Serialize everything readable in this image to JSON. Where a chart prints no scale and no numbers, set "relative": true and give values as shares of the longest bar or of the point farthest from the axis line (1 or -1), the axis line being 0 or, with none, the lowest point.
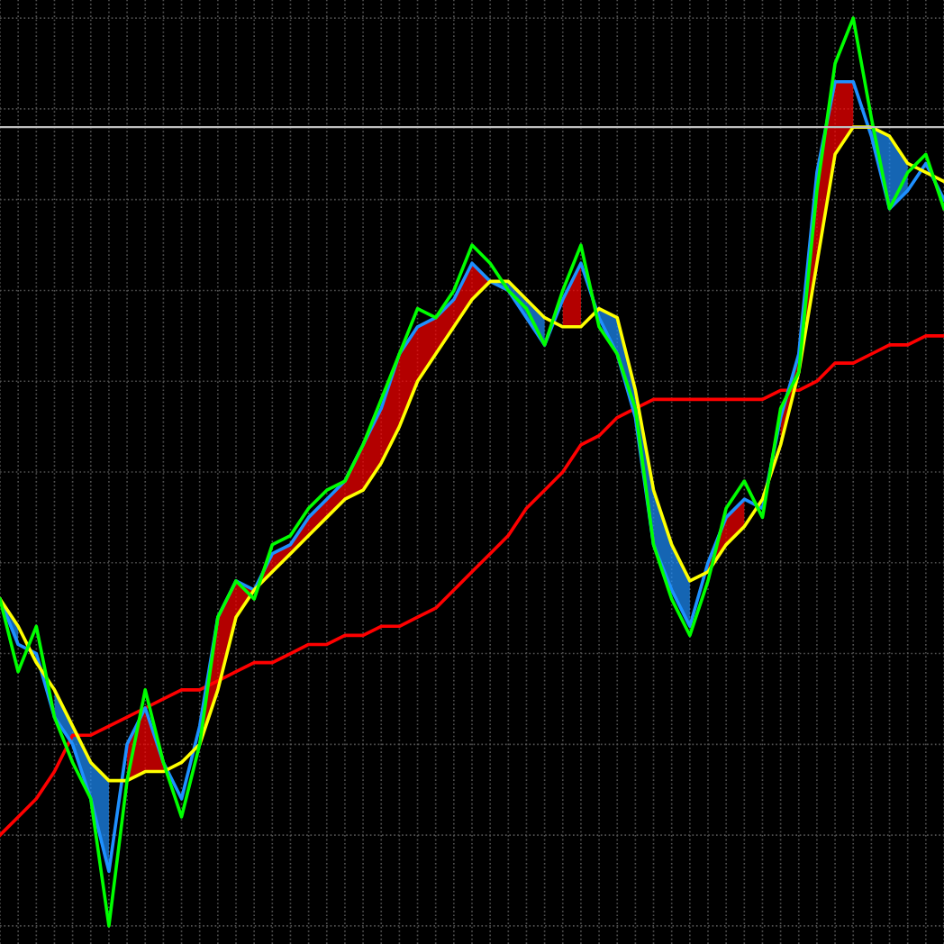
{
  "chart_data": {
    "type": "line",
    "relative": true,
    "grid": true,
    "legend": false,
    "categories": [
      null,
      null,
      null,
      null,
      null,
      null,
      null,
      null,
      null,
      null,
      null,
      null,
      null,
      null,
      null,
      null,
      null,
      null,
      null,
      null,
      null,
      null,
      null,
      null,
      null,
      null,
      null,
      null,
      null,
      null,
      null,
      null,
      null,
      null,
      null,
      null,
      null,
      null,
      null,
      null,
      null,
      null,
      null,
      null,
      null,
      null,
      null,
      null,
      null,
      null,
      null,
      null,
      null
    ],
    "series": [
      {
        "color": "#ff0000",
        "values": [
          0.1,
          0.12,
          0.14,
          0.17,
          0.21,
          0.21,
          0.22,
          0.23,
          0.24,
          0.25,
          0.26,
          0.26,
          0.27,
          0.28,
          0.29,
          0.29,
          0.3,
          0.31,
          0.31,
          0.32,
          0.32,
          0.33,
          0.33,
          0.34,
          0.35,
          0.37,
          0.39,
          0.41,
          0.43,
          0.46,
          0.48,
          0.5,
          0.53,
          0.54,
          0.56,
          0.57,
          0.58,
          0.58,
          0.58,
          0.58,
          0.58,
          0.58,
          0.58,
          0.59,
          0.59,
          0.6,
          0.62,
          0.62,
          0.63,
          0.64,
          0.64,
          0.65,
          0.65
        ],
        "upper": [
          null,
          null,
          null,
          null,
          null,
          null,
          null,
          0.2,
          0.24,
          0.18,
          null,
          0.22,
          0.34,
          0.38,
          0.37,
          0.41,
          0.42,
          0.45,
          0.47,
          0.49,
          0.53,
          0.57,
          0.63,
          0.66,
          0.67,
          0.69,
          0.73,
          0.71,
          null,
          null,
          null,
          0.69,
          0.73,
          null,
          null,
          null,
          null,
          null,
          null,
          0.4,
          0.45,
          0.47,
          null,
          0.56,
          0.63,
          0.83,
          0.93,
          0.93,
          null,
          null,
          null,
          null,
          null
        ],
        "lower": [
          null,
          null,
          null,
          null,
          null,
          null,
          null,
          0.16,
          0.17,
          0.17,
          null,
          0.2,
          0.26,
          0.34,
          0.37,
          0.39,
          0.41,
          0.43,
          0.45,
          0.47,
          0.48,
          0.51,
          0.55,
          0.6,
          0.63,
          0.66,
          0.69,
          0.71,
          null,
          null,
          null,
          0.66,
          0.66,
          null,
          null,
          null,
          null,
          null,
          null,
          0.39,
          0.42,
          0.44,
          null,
          0.53,
          0.61,
          0.73,
          0.85,
          0.88,
          null,
          null,
          null,
          null,
          null
        ]
      },
      {
        "color": "#1e90ff",
        "values": [
          0.36,
          0.31,
          0.3,
          0.23,
          0.2,
          0.14,
          0.06,
          0.2,
          0.24,
          0.18,
          0.14,
          0.22,
          0.34,
          0.38,
          0.37,
          0.41,
          0.42,
          0.45,
          0.47,
          0.49,
          0.53,
          0.57,
          0.63,
          0.66,
          0.67,
          0.69,
          0.73,
          0.71,
          0.7,
          0.67,
          0.64,
          0.69,
          0.73,
          0.67,
          0.63,
          0.56,
          0.42,
          0.37,
          0.33,
          0.4,
          0.45,
          0.47,
          0.46,
          0.56,
          0.63,
          0.83,
          0.93,
          0.93,
          0.87,
          0.79,
          0.81,
          0.84,
          0.8
        ],
        "upper": [
          0.36,
          0.33,
          null,
          0.26,
          0.22,
          0.18,
          0.16,
          null,
          null,
          null,
          null,
          null,
          null,
          null,
          null,
          null,
          null,
          null,
          null,
          null,
          null,
          null,
          null,
          null,
          null,
          null,
          null,
          0.71,
          0.71,
          0.69,
          0.67,
          null,
          null,
          0.68,
          0.67,
          0.59,
          0.48,
          0.42,
          0.38,
          null,
          null,
          null,
          null,
          null,
          null,
          null,
          null,
          null,
          0.88,
          0.87,
          0.84,
          null,
          null
        ],
        "lower": [
          0.36,
          0.31,
          null,
          0.23,
          0.2,
          0.14,
          0.06,
          null,
          null,
          null,
          null,
          null,
          null,
          null,
          null,
          null,
          null,
          null,
          null,
          null,
          null,
          null,
          null,
          null,
          null,
          null,
          null,
          0.71,
          0.7,
          0.67,
          0.64,
          null,
          null,
          0.67,
          0.63,
          0.56,
          0.42,
          0.37,
          0.33,
          null,
          null,
          null,
          null,
          null,
          null,
          null,
          null,
          null,
          0.87,
          0.79,
          0.81,
          null,
          null
        ]
      },
      {
        "color": "#ffff00",
        "values": [
          0.36,
          0.33,
          0.29,
          0.26,
          0.22,
          0.18,
          0.16,
          0.16,
          0.17,
          0.17,
          0.18,
          0.2,
          0.26,
          0.34,
          0.37,
          0.39,
          0.41,
          0.43,
          0.45,
          0.47,
          0.48,
          0.51,
          0.55,
          0.6,
          0.63,
          0.66,
          0.69,
          0.71,
          0.71,
          0.69,
          0.67,
          0.66,
          0.66,
          0.68,
          0.67,
          0.59,
          0.48,
          0.42,
          0.38,
          0.39,
          0.42,
          0.44,
          0.47,
          0.53,
          0.61,
          0.73,
          0.85,
          0.88,
          0.88,
          0.87,
          0.84,
          0.83,
          0.82
        ]
      },
      {
        "color": "#00ff00",
        "values": [
          0.36,
          0.28,
          0.33,
          0.23,
          0.18,
          0.14,
          0.0,
          0.16,
          0.26,
          0.18,
          0.12,
          0.2,
          0.34,
          0.38,
          0.36,
          0.42,
          0.43,
          0.46,
          0.48,
          0.49,
          0.53,
          0.58,
          0.63,
          0.68,
          0.67,
          0.7,
          0.75,
          0.73,
          0.7,
          0.68,
          0.64,
          0.7,
          0.75,
          0.66,
          0.63,
          0.57,
          0.42,
          0.36,
          0.32,
          0.38,
          0.46,
          0.49,
          0.45,
          0.57,
          0.61,
          0.81,
          0.95,
          1.0,
          0.89,
          0.79,
          0.83,
          0.85,
          0.79
        ]
      }
    ],
    "ref_lines": [
      {
        "axis": "y",
        "value": 0.88,
        "color": "#c0c0c0"
      }
    ]
  }
}
